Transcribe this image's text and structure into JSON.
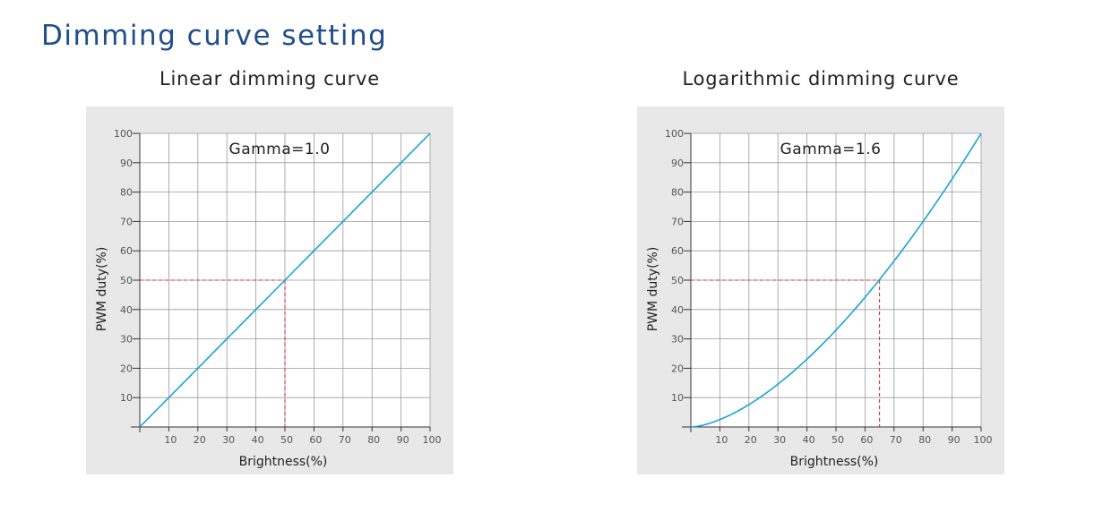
{
  "page": {
    "title": "Dimming curve setting"
  },
  "colors": {
    "title": "#1f4e8c",
    "curve": "#1aa3d6",
    "marker": "#e0303a",
    "grid": "#9a9a9a",
    "panel": "#e8e8e8"
  },
  "chart_data": [
    {
      "type": "line",
      "title": "Linear dimming curve",
      "annotation": "Gamma=1.0",
      "gamma": 1.0,
      "xlabel": "Brightness(%)",
      "ylabel": "PWM duty(%)",
      "xlim": [
        0,
        100
      ],
      "ylim": [
        0,
        100
      ],
      "xticks": [
        "10",
        "20",
        "30",
        "40",
        "50",
        "60",
        "70",
        "80",
        "90",
        "100"
      ],
      "yticks": [
        "10",
        "20",
        "30",
        "40",
        "50",
        "60",
        "70",
        "80",
        "90",
        "100"
      ],
      "grid": true,
      "series": [
        {
          "x": [
            0,
            10,
            20,
            30,
            40,
            50,
            60,
            70,
            80,
            90,
            100
          ],
          "y": [
            0,
            10,
            20,
            30,
            40,
            50,
            60,
            70,
            80,
            90,
            100
          ]
        }
      ],
      "marker": {
        "x": 50,
        "y": 50
      }
    },
    {
      "type": "line",
      "title": "Logarithmic dimming curve",
      "annotation": "Gamma=1.6",
      "gamma": 1.6,
      "xlabel": "Brightness(%)",
      "ylabel": "PWM duty(%)",
      "xlim": [
        0,
        100
      ],
      "ylim": [
        0,
        100
      ],
      "xticks": [
        "10",
        "20",
        "30",
        "40",
        "50",
        "60",
        "70",
        "80",
        "90",
        "100"
      ],
      "yticks": [
        "10",
        "20",
        "30",
        "40",
        "50",
        "60",
        "70",
        "80",
        "90",
        "100"
      ],
      "grid": true,
      "series": [
        {
          "x": [
            0,
            10,
            20,
            30,
            40,
            50,
            60,
            70,
            80,
            90,
            100
          ],
          "y": [
            0,
            2.5,
            7.6,
            14.5,
            23.1,
            33.0,
            44.1,
            56.5,
            70.0,
            84.5,
            100
          ]
        }
      ],
      "marker": {
        "x": 65,
        "y": 50
      }
    }
  ]
}
